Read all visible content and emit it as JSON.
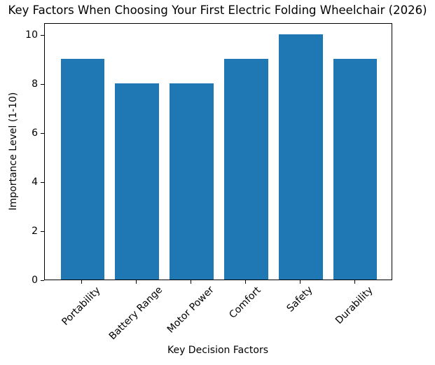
{
  "figure": {
    "title": "Key Factors When Choosing Your First Electric Folding Wheelchair (2026)"
  },
  "chart_data": {
    "type": "bar",
    "title": "Key Factors When Choosing Your First Electric Folding Wheelchair (2026)",
    "categories": [
      "Portability",
      "Battery Range",
      "Motor Power",
      "Comfort",
      "Safety",
      "Durability"
    ],
    "values": [
      9,
      8,
      8,
      9,
      10,
      9
    ],
    "xlabel": "Key Decision Factors",
    "ylabel": "Importance Level (1-10)",
    "ylim": [
      0,
      10.5
    ],
    "yticks": [
      0,
      2,
      4,
      6,
      8,
      10
    ],
    "x_tick_rotation_deg": 45,
    "bar_color": "#1f77b4",
    "bar_width_fraction": 0.8,
    "grid": false,
    "legend_position": "none"
  }
}
